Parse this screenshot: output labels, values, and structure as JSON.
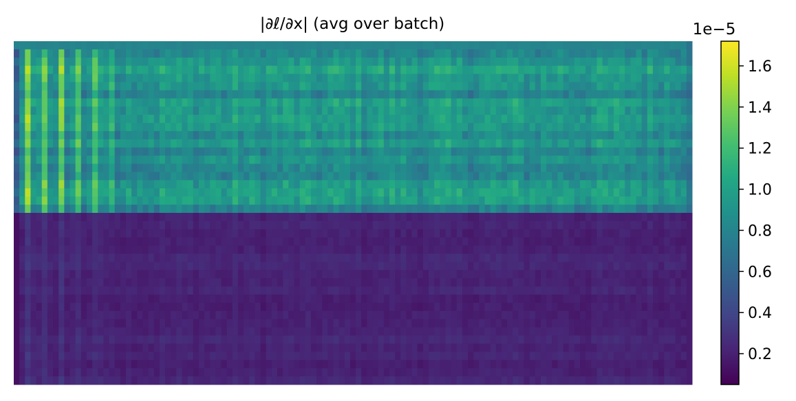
{
  "chart_data": {
    "type": "heatmap",
    "title": "|∂ℓ/∂x| (avg over batch)",
    "xlabel": "",
    "ylabel": "",
    "axes_visible": false,
    "colormap": "viridis",
    "grid": false,
    "n_rows": 42,
    "n_cols": 121,
    "top_block_rows": 21,
    "value_summary": {
      "top_block_typical": 9.5e-06,
      "top_block_peak_columns": 1.65e-05,
      "bottom_block_typical": 2.2e-06,
      "min": 5e-07
    },
    "colorbar": {
      "scale_label": "1e−5",
      "vmin": 0.05,
      "vmax": 1.72,
      "ticks": [
        0.2,
        0.4,
        0.6,
        0.8,
        1.0,
        1.2,
        1.4,
        1.6
      ],
      "tick_labels": [
        "0.2",
        "0.4",
        "0.6",
        "0.8",
        "1.0",
        "1.2",
        "1.4",
        "1.6"
      ]
    }
  }
}
